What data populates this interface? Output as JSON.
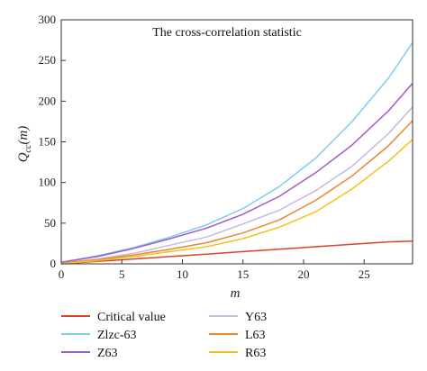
{
  "chart_data": {
    "type": "line",
    "title": "The cross-correlation statistic",
    "xlabel": "m",
    "ylabel_main": "Q",
    "ylabel_sub": "cc",
    "ylabel_arg": "(m)",
    "xlim": [
      0,
      29
    ],
    "ylim": [
      0,
      300
    ],
    "xticks": [
      0,
      5,
      10,
      15,
      20,
      25
    ],
    "yticks": [
      0,
      50,
      100,
      150,
      200,
      250,
      300
    ],
    "grid": false,
    "legend_position": "bottom",
    "x": [
      0,
      3,
      6,
      9,
      12,
      15,
      18,
      21,
      24,
      27,
      29
    ],
    "series": [
      {
        "name": "Critical value",
        "color": "#d9442b",
        "values": [
          0,
          3,
          6,
          9,
          12,
          15,
          18,
          21,
          24,
          27,
          28
        ]
      },
      {
        "name": "Zlzc-63",
        "color": "#7fcdee",
        "values": [
          2,
          10,
          20,
          33,
          48,
          68,
          95,
          130,
          175,
          228,
          272
        ]
      },
      {
        "name": "Z63",
        "color": "#a05cc8",
        "values": [
          2,
          9,
          19,
          31,
          44,
          61,
          83,
          112,
          146,
          188,
          222
        ]
      },
      {
        "name": "Y63",
        "color": "#c6b8e2",
        "values": [
          1,
          6,
          13,
          23,
          33,
          49,
          66,
          90,
          120,
          160,
          193
        ]
      },
      {
        "name": "L63",
        "color": "#e8872e",
        "values": [
          1,
          5,
          11,
          18,
          26,
          38,
          54,
          78,
          108,
          145,
          176
        ]
      },
      {
        "name": "R63",
        "color": "#f2c21a",
        "values": [
          0,
          4,
          9,
          15,
          21,
          31,
          45,
          64,
          92,
          126,
          153
        ]
      }
    ]
  }
}
